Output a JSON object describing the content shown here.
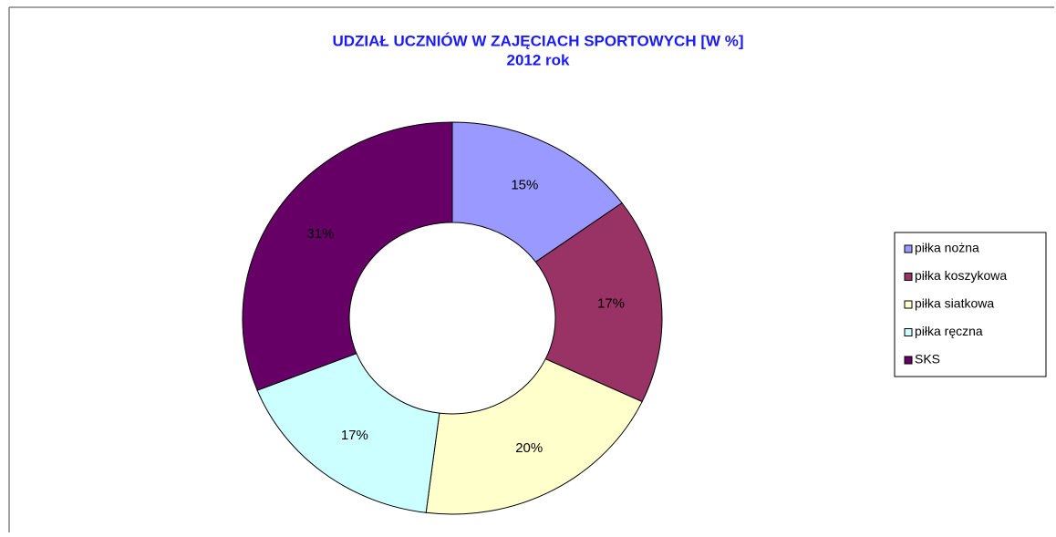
{
  "chart_data": {
    "type": "donut",
    "title": "UDZIAŁ UCZNIÓW W ZAJĘCIACH SPORTOWYCH [W %]",
    "subtitle": "2012 rok",
    "categories": [
      "piłka nożna",
      "piłka koszykowa",
      "piłka siatkowa",
      "piłka ręczna",
      "SKS"
    ],
    "values": [
      15,
      17,
      20,
      17,
      31
    ],
    "value_labels": [
      "15%",
      "17%",
      "20%",
      "17%",
      "31%"
    ],
    "colors": [
      "#9999ff",
      "#993366",
      "#ffffcc",
      "#ccffff",
      "#660066"
    ],
    "legend": "right"
  }
}
